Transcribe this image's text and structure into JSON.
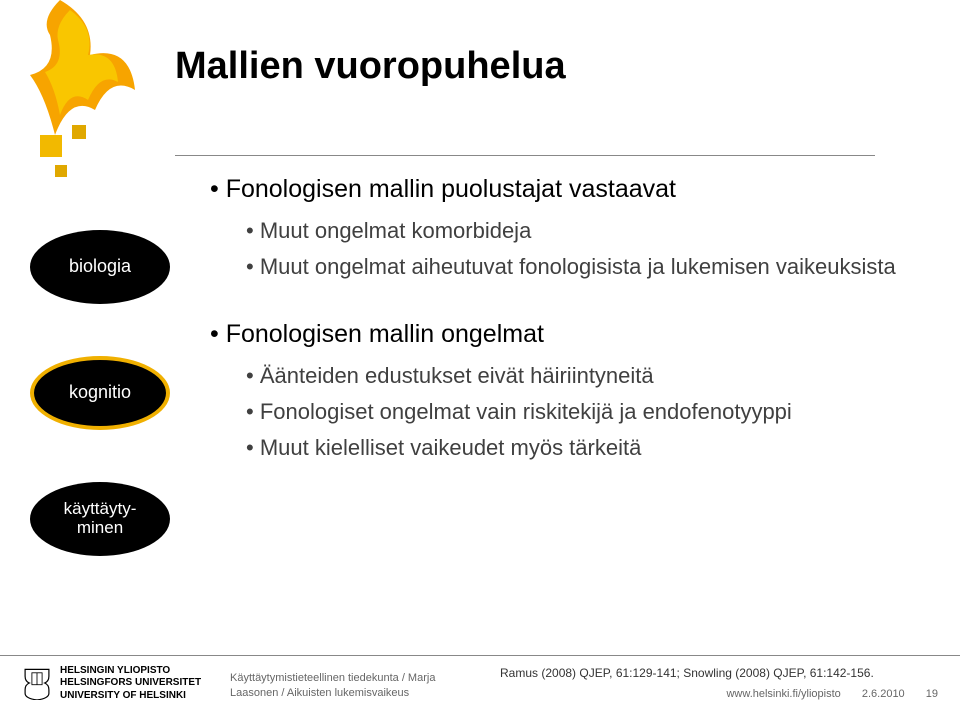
{
  "title": "Mallien vuoropuhelua",
  "ovals": {
    "top": "biologia",
    "mid": "kognitio",
    "bot": "käyttäyty-\nminen"
  },
  "bullets": {
    "l1a": "Fonologisen mallin puolustajat vastaavat",
    "l2a": "Muut ongelmat komorbideja",
    "l2b": "Muut ongelmat aiheutuvat fonologisista ja lukemisen vaikeuksista",
    "l1b": "Fonologisen mallin ongelmat",
    "l2c": "Äänteiden edustukset eivät häiriintyneitä",
    "l2d": "Fonologiset ongelmat vain riskitekijä ja endofenotyyppi",
    "l2e": "Muut kielelliset vaikeudet myös tärkeitä"
  },
  "footer": {
    "uni1": "HELSINGIN YLIOPISTO",
    "uni2": "HELSINGFORS UNIVERSITET",
    "uni3": "UNIVERSITY OF HELSINKI",
    "mid1": "Käyttäytymistieteellinen tiedekunta / Marja",
    "mid2": "Laasonen / Aikuisten lukemisvaikeus",
    "cite": "Ramus (2008) QJEP, 61:129-141; Snowling (2008) QJEP, 61:142-156.",
    "url": "www.helsinki.fi/yliopisto",
    "date": "2.6.2010",
    "page": "19"
  },
  "colors": {
    "flame_orange": "#f7a400",
    "flame_yellow": "#f9c600",
    "dark_yellow": "#e0a800",
    "square_yellow": "#f2b900"
  }
}
